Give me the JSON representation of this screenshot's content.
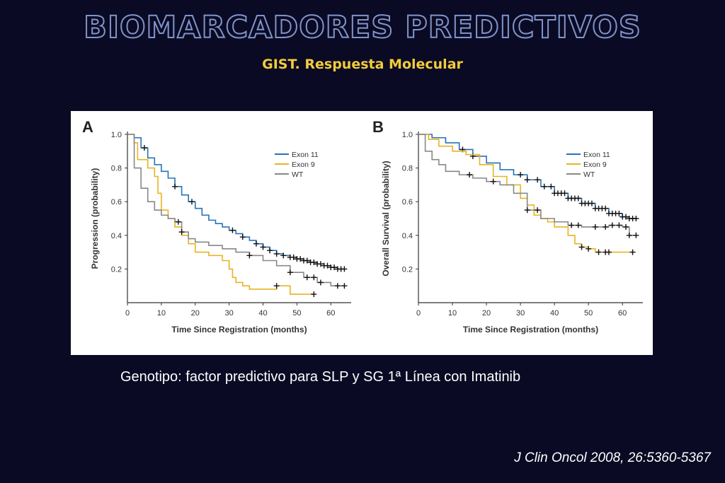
{
  "header": {
    "title": "BIOMARCADORES PREDICTIVOS",
    "subtitle": "GIST. Respuesta Molecular"
  },
  "caption": "Genotipo: factor predictivo para SLP y SG 1ª Línea con Imatinib",
  "citation": "J Clin Oncol 2008, 26:5360-5367",
  "colors": {
    "exon11": "#2673b8",
    "exon9": "#e8b422",
    "wt": "#888888",
    "background": "#0b0a24"
  },
  "chart_data": [
    {
      "type": "line",
      "panel_label": "A",
      "xlabel": "Time Since Registration (months)",
      "ylabel": "Progression (probability)",
      "xlim": [
        0,
        66
      ],
      "ylim": [
        0,
        1.0
      ],
      "xticks": [
        "0",
        "10",
        "20",
        "30",
        "40",
        "50",
        "60"
      ],
      "yticks": [
        "0.2",
        "0.4",
        "0.6",
        "0.8",
        "1.0"
      ],
      "legend_position": "top-right",
      "series": [
        {
          "name": "Exon 11",
          "x": [
            0,
            2,
            4,
            6,
            8,
            10,
            12,
            14,
            16,
            18,
            20,
            22,
            24,
            26,
            28,
            30,
            32,
            34,
            36,
            38,
            40,
            42,
            44,
            46,
            48,
            50,
            52,
            54,
            56,
            58,
            60,
            62,
            64
          ],
          "y": [
            1.0,
            0.98,
            0.92,
            0.86,
            0.82,
            0.78,
            0.74,
            0.69,
            0.64,
            0.6,
            0.56,
            0.52,
            0.49,
            0.47,
            0.45,
            0.43,
            0.41,
            0.39,
            0.37,
            0.35,
            0.33,
            0.31,
            0.29,
            0.28,
            0.27,
            0.26,
            0.25,
            0.24,
            0.23,
            0.22,
            0.21,
            0.2,
            0.2
          ],
          "censor_x": [
            5,
            14,
            19,
            31,
            34,
            38,
            40,
            42,
            44,
            46,
            48,
            49,
            50,
            51,
            52,
            53,
            54,
            55,
            56,
            57,
            58,
            59,
            60,
            61,
            62,
            63,
            64
          ]
        },
        {
          "name": "Exon 9",
          "x": [
            0,
            2,
            3,
            6,
            8,
            9,
            10,
            12,
            14,
            16,
            18,
            20,
            24,
            28,
            30,
            31,
            32,
            34,
            36,
            40,
            44,
            48,
            55
          ],
          "y": [
            1.0,
            0.95,
            0.85,
            0.8,
            0.75,
            0.65,
            0.55,
            0.5,
            0.45,
            0.4,
            0.35,
            0.3,
            0.28,
            0.25,
            0.2,
            0.15,
            0.12,
            0.1,
            0.08,
            0.08,
            0.1,
            0.05,
            0.05
          ],
          "censor_x": [
            44,
            55
          ]
        },
        {
          "name": "WT",
          "x": [
            0,
            2,
            4,
            6,
            8,
            10,
            12,
            14,
            16,
            18,
            20,
            24,
            28,
            32,
            36,
            40,
            44,
            48,
            52,
            56,
            60,
            64
          ],
          "y": [
            1.0,
            0.8,
            0.68,
            0.6,
            0.55,
            0.52,
            0.5,
            0.48,
            0.42,
            0.38,
            0.36,
            0.34,
            0.32,
            0.3,
            0.28,
            0.25,
            0.22,
            0.18,
            0.15,
            0.12,
            0.1,
            0.1
          ],
          "censor_x": [
            15,
            16,
            36,
            48,
            53,
            55,
            57,
            62,
            64
          ]
        }
      ]
    },
    {
      "type": "line",
      "panel_label": "B",
      "xlabel": "Time Since Registration (months)",
      "ylabel": "Overall Survival (probability)",
      "xlim": [
        0,
        66
      ],
      "ylim": [
        0,
        1.0
      ],
      "xticks": [
        "0",
        "10",
        "20",
        "30",
        "40",
        "50",
        "60"
      ],
      "yticks": [
        "0.2",
        "0.4",
        "0.6",
        "0.8",
        "1.0"
      ],
      "legend_position": "top-right",
      "series": [
        {
          "name": "Exon 11",
          "x": [
            0,
            4,
            8,
            12,
            16,
            20,
            24,
            28,
            32,
            36,
            40,
            44,
            48,
            52,
            56,
            60,
            62,
            64
          ],
          "y": [
            1.0,
            0.98,
            0.95,
            0.91,
            0.87,
            0.83,
            0.79,
            0.76,
            0.73,
            0.69,
            0.65,
            0.62,
            0.59,
            0.56,
            0.53,
            0.51,
            0.5,
            0.5
          ],
          "censor_x": [
            13,
            16,
            30,
            32,
            35,
            37,
            39,
            40,
            41,
            42,
            43,
            44,
            45,
            46,
            47,
            48,
            49,
            50,
            51,
            52,
            53,
            54,
            55,
            56,
            57,
            58,
            59,
            60,
            61,
            62,
            63,
            64
          ]
        },
        {
          "name": "Exon 9",
          "x": [
            0,
            3,
            6,
            10,
            14,
            18,
            22,
            26,
            30,
            32,
            34,
            36,
            38,
            40,
            44,
            46,
            48,
            50,
            52,
            56,
            60,
            63
          ],
          "y": [
            1.0,
            0.97,
            0.93,
            0.9,
            0.88,
            0.82,
            0.75,
            0.7,
            0.62,
            0.58,
            0.52,
            0.5,
            0.48,
            0.45,
            0.4,
            0.35,
            0.33,
            0.32,
            0.3,
            0.3,
            0.3,
            0.3
          ],
          "censor_x": [
            48,
            50,
            53,
            55,
            56,
            63
          ]
        },
        {
          "name": "WT",
          "x": [
            0,
            2,
            4,
            6,
            8,
            12,
            16,
            20,
            24,
            28,
            32,
            36,
            40,
            44,
            48,
            52,
            56,
            60,
            62,
            64
          ],
          "y": [
            1.0,
            0.9,
            0.85,
            0.82,
            0.78,
            0.76,
            0.74,
            0.72,
            0.7,
            0.65,
            0.55,
            0.5,
            0.48,
            0.46,
            0.45,
            0.45,
            0.46,
            0.45,
            0.4,
            0.4
          ],
          "censor_x": [
            15,
            22,
            32,
            35,
            45,
            47,
            52,
            55,
            57,
            59,
            61,
            62,
            64
          ]
        }
      ]
    }
  ]
}
